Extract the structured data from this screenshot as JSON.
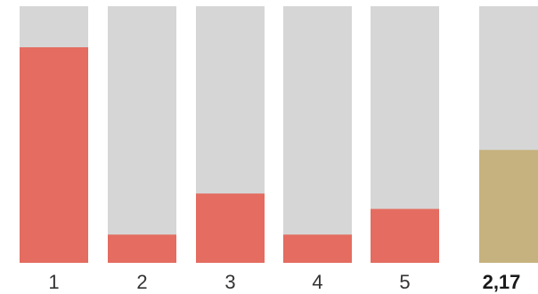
{
  "chart_data": {
    "type": "bar",
    "categories": [
      "1",
      "2",
      "3",
      "4",
      "5"
    ],
    "values": [
      0.84,
      0.11,
      0.27,
      0.11,
      0.21
    ],
    "ylim": [
      0,
      1
    ],
    "summary": {
      "label": "2,17",
      "value": 0.44
    },
    "colors": {
      "track": "#d6d6d6",
      "bar": "#e46c60",
      "summary_bar": "#c6b27e",
      "text": "#333333"
    }
  }
}
